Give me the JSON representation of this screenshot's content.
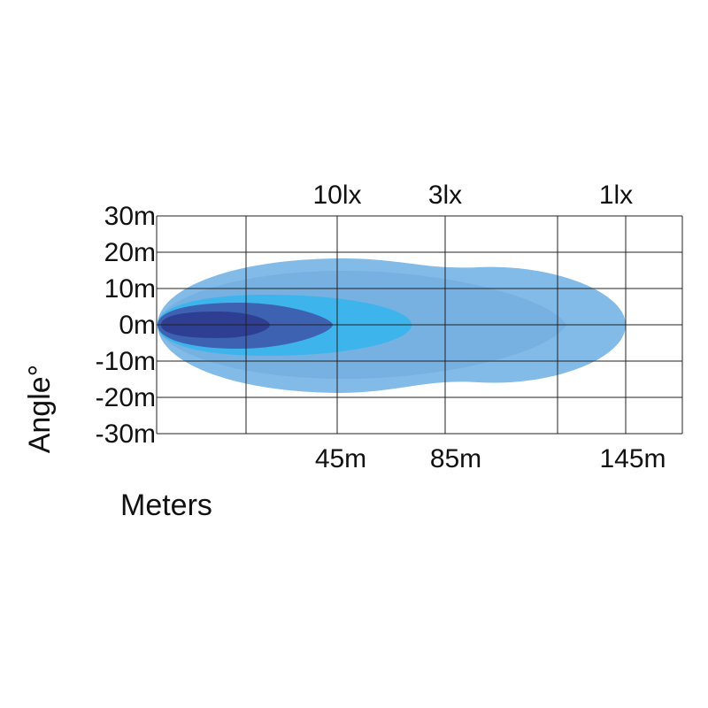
{
  "y_axis": {
    "title": "Angle°",
    "labels": [
      "30m",
      "20m",
      "10m",
      "0m",
      "-10m",
      "-20m",
      "-30m"
    ]
  },
  "x_axis": {
    "title": "Meters",
    "labels": [
      "45m",
      "85m",
      "145m"
    ]
  },
  "lux_labels": [
    "10lx",
    "3lx",
    "1lx"
  ]
}
